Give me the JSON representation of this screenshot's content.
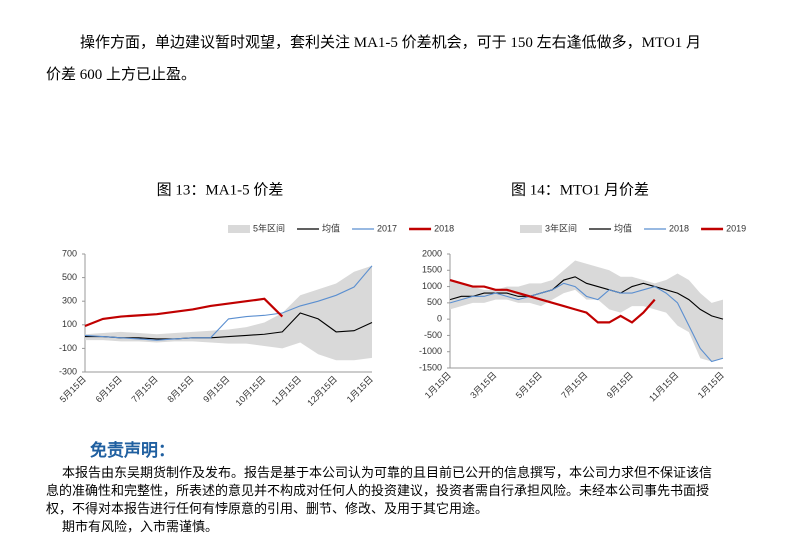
{
  "paragraph": [
    "操作方面，单边建议暂时观望，套利关注 MA1-5 价差机会，可于 150 左右逢低做多，MTO1 月",
    "价差 600 上方已止盈。"
  ],
  "chart_data": [
    {
      "type": "line",
      "title": "图 13：MA1-5 价差",
      "categories": [
        "5月15日",
        null,
        "6月15日",
        null,
        "7月15日",
        null,
        "8月15日",
        null,
        "9月15日",
        null,
        "10月15日",
        null,
        "11月15日",
        null,
        "12月15日",
        null,
        "1月15日"
      ],
      "ylim": [
        -300,
        700
      ],
      "yticks": [
        -300,
        -100,
        100,
        300,
        500,
        700
      ],
      "series": [
        {
          "name": "5年区间",
          "type": "band",
          "color": "#d9d9d9",
          "high": [
            20,
            30,
            40,
            30,
            20,
            30,
            40,
            50,
            60,
            80,
            120,
            200,
            350,
            400,
            450,
            550,
            600
          ],
          "low": [
            -30,
            -30,
            -40,
            -40,
            -50,
            -40,
            -40,
            -50,
            -60,
            -60,
            -80,
            -100,
            -50,
            -150,
            -200,
            -200,
            -180
          ]
        },
        {
          "name": "均值",
          "color": "#000000",
          "values": [
            0,
            0,
            -10,
            -10,
            -20,
            -20,
            -10,
            -10,
            0,
            10,
            20,
            40,
            200,
            150,
            40,
            50,
            120
          ]
        },
        {
          "name": "2017",
          "color": "#5b8fd0",
          "values": [
            10,
            0,
            -10,
            -20,
            -30,
            -20,
            -10,
            -10,
            150,
            170,
            180,
            200,
            260,
            300,
            350,
            420,
            600
          ]
        },
        {
          "name": "2018",
          "color": "#c00000",
          "values": [
            90,
            150,
            170,
            180,
            190,
            210,
            230,
            260,
            280,
            300,
            320,
            170,
            null,
            null,
            null,
            null,
            null
          ]
        }
      ]
    },
    {
      "type": "line",
      "title": "图 14：MTO1 月价差",
      "categories": [
        "1月15日",
        null,
        null,
        null,
        "3月15日",
        null,
        null,
        null,
        "5月15日",
        null,
        null,
        null,
        "7月15日",
        null,
        null,
        null,
        "9月15日",
        null,
        null,
        null,
        "11月15日",
        null,
        null,
        null,
        "1月15日"
      ],
      "ylim": [
        -1500,
        2000
      ],
      "yticks": [
        -1500,
        -1000,
        -500,
        0,
        500,
        1000,
        1500,
        2000
      ],
      "series": [
        {
          "name": "3年区间",
          "type": "band",
          "color": "#d9d9d9",
          "high": [
            1200,
            1100,
            1000,
            900,
            900,
            1000,
            1000,
            1100,
            1100,
            1200,
            1500,
            1800,
            1700,
            1600,
            1500,
            1300,
            1300,
            1200,
            1100,
            1200,
            1400,
            1200,
            800,
            500,
            600
          ],
          "low": [
            300,
            400,
            500,
            500,
            600,
            600,
            500,
            500,
            400,
            600,
            800,
            900,
            600,
            600,
            300,
            200,
            400,
            400,
            300,
            200,
            -200,
            -400,
            -1200,
            -1300,
            -1200
          ]
        },
        {
          "name": "均值",
          "color": "#000000",
          "values": [
            600,
            700,
            700,
            800,
            800,
            800,
            700,
            700,
            800,
            900,
            1200,
            1300,
            1100,
            1000,
            900,
            800,
            1000,
            1100,
            1000,
            900,
            800,
            600,
            300,
            100,
            0
          ]
        },
        {
          "name": "2018",
          "color": "#5b8fd0",
          "values": [
            500,
            600,
            700,
            700,
            800,
            700,
            600,
            700,
            800,
            900,
            1100,
            1000,
            700,
            600,
            900,
            800,
            800,
            900,
            1000,
            800,
            500,
            -200,
            -900,
            -1300,
            -1200
          ]
        },
        {
          "name": "2019",
          "color": "#c00000",
          "values": [
            1200,
            1100,
            1000,
            1000,
            900,
            900,
            800,
            700,
            600,
            500,
            400,
            300,
            200,
            -100,
            -100,
            100,
            -100,
            200,
            600,
            null,
            null,
            null,
            null,
            null,
            null
          ]
        }
      ]
    }
  ],
  "disclaimer": {
    "title": "免责声明：",
    "lines": [
      "本报告由东吴期货制作及发布。报告是基于本公司认为可靠的且目前已公开的信息撰写，本公司力求但不保证该信",
      "息的准确性和完整性，所表述的意见并不构成对任何人的投资建议，投资者需自行承担风险。未经本公司事先书面授",
      "权，不得对本报告进行任何有悖原意的引用、删节、修改、及用于其它用途。",
      "期市有风险，入市需谨慎。"
    ]
  }
}
